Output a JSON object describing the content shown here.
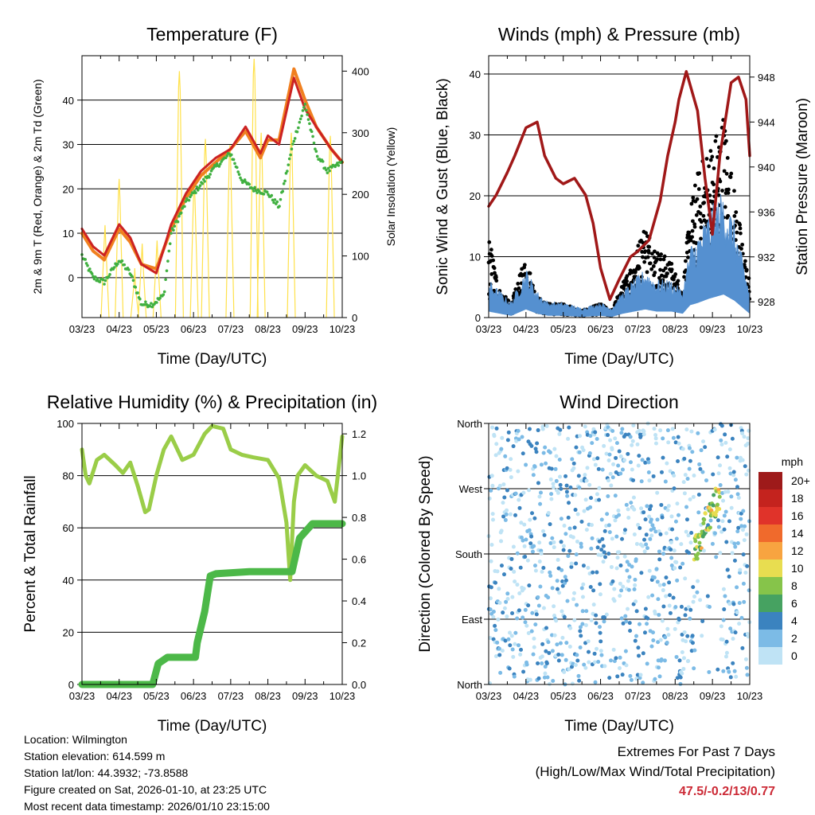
{
  "chart_data": [
    {
      "type": "line",
      "title": "Temperature (F)",
      "xlabel": "Time (Day/UTC)",
      "ylabel_left": "2m & 9m T (Red, Orange) & 2m Td (Green)",
      "ylabel_right": "Solar Insolation (Yellow)",
      "x_ticks": [
        "03/23",
        "04/23",
        "05/23",
        "06/23",
        "07/23",
        "08/23",
        "09/23",
        "10/23"
      ],
      "ylim_left": [
        -9,
        50
      ],
      "yticks_left": [
        0,
        10,
        20,
        30,
        40
      ],
      "ylim_right": [
        0,
        425
      ],
      "yticks_right": [
        0,
        100,
        200,
        300,
        400
      ],
      "series": [
        {
          "name": "2m T",
          "color": "#cc2222",
          "axis": "left",
          "x": [
            0,
            0.3,
            0.6,
            1,
            1.3,
            1.6,
            2,
            2.4,
            2.8,
            3.2,
            3.6,
            4,
            4.4,
            4.8,
            5,
            5.3,
            5.7,
            6,
            6.3,
            6.7,
            7
          ],
          "values": [
            11,
            7,
            5,
            12,
            9,
            3,
            1,
            12,
            19,
            24,
            27,
            29,
            34,
            28,
            32,
            30,
            45,
            38,
            34,
            29,
            26
          ]
        },
        {
          "name": "9m T",
          "color": "#f08020",
          "axis": "left",
          "x": [
            0,
            0.3,
            0.6,
            1,
            1.3,
            1.6,
            2,
            2.4,
            2.8,
            3.2,
            3.6,
            4,
            4.4,
            4.8,
            5,
            5.3,
            5.7,
            6,
            6.3,
            6.7,
            7
          ],
          "values": [
            10,
            6,
            4,
            11,
            8,
            3,
            2,
            11,
            18,
            23,
            26,
            29,
            33,
            27,
            31,
            31,
            47,
            40,
            34,
            29,
            26
          ]
        },
        {
          "name": "2m Td",
          "color": "#40b040",
          "axis": "left",
          "x": [
            0,
            0.3,
            0.6,
            1,
            1.3,
            1.6,
            1.9,
            2.2,
            2.4,
            2.8,
            3.2,
            3.6,
            4,
            4.3,
            4.6,
            5,
            5.3,
            5.7,
            6,
            6.3,
            6.6,
            7
          ],
          "values": [
            5,
            0,
            -1,
            4,
            1,
            -6,
            -6,
            -4,
            10,
            17,
            21,
            25,
            28,
            22,
            20,
            19,
            16,
            31,
            39,
            28,
            24,
            26
          ]
        },
        {
          "name": "Solar Insolation",
          "color": "#ffe14a",
          "axis": "right",
          "x": [
            0.62,
            1,
            1.42,
            1.62,
            2.02,
            2.62,
            3.02,
            3.32,
            3.98,
            4.63,
            4.82,
            5.63,
            6.68
          ],
          "values": [
            150,
            225,
            80,
            120,
            125,
            400,
            220,
            290,
            280,
            420,
            300,
            300,
            295
          ]
        }
      ]
    },
    {
      "type": "line",
      "title": "Winds (mph) & Pressure (mb)",
      "xlabel": "Time (Day/UTC)",
      "ylabel_left": "Sonic Wind & Gust (Blue, Black)",
      "ylabel_right": "Station Pressure (Maroon)",
      "x_ticks": [
        "03/23",
        "04/23",
        "05/23",
        "06/23",
        "07/23",
        "08/23",
        "09/23",
        "10/23"
      ],
      "ylim_left": [
        0,
        43
      ],
      "yticks_left": [
        0,
        10,
        20,
        30,
        40
      ],
      "ylim_right": [
        926.6,
        949.9
      ],
      "yticks_right": [
        928,
        932,
        936,
        940,
        944,
        948
      ],
      "series": [
        {
          "name": "Station Pressure",
          "color": "#a01818",
          "axis": "right",
          "x": [
            0,
            0.2,
            0.5,
            0.7,
            1,
            1.3,
            1.5,
            1.8,
            2,
            2.3,
            2.6,
            2.8,
            3,
            3.25,
            3.5,
            3.8,
            4,
            4.3,
            4.6,
            4.8,
            5,
            5.1,
            5.3,
            5.6,
            5.8,
            6,
            6.2,
            6.5,
            6.7,
            6.9,
            7
          ],
          "values": [
            936.5,
            937.5,
            939.5,
            941,
            943.5,
            944,
            941,
            939,
            938.5,
            939,
            937.5,
            935,
            931,
            928.2,
            930,
            932,
            932.5,
            933.5,
            937,
            941,
            944,
            946,
            948.5,
            945,
            939,
            934,
            941,
            947.5,
            948,
            946,
            941
          ]
        },
        {
          "name": "Sonic Wind",
          "color": "#5590d0",
          "axis": "left",
          "x": [
            0,
            0.3,
            0.6,
            1,
            1.3,
            1.6,
            2,
            2.5,
            3,
            3.3,
            3.6,
            3.9,
            4.2,
            4.5,
            4.9,
            5.2,
            5.4,
            5.6,
            5.9,
            6.1,
            6.3,
            6.6,
            7
          ],
          "values": [
            3,
            2,
            1,
            4,
            2,
            1,
            1,
            0.5,
            1,
            0.5,
            2,
            3,
            4,
            3,
            3,
            2,
            6,
            7,
            9,
            10,
            11,
            8,
            2
          ]
        },
        {
          "name": "Gust",
          "color": "#000000",
          "axis": "left",
          "x": [
            0,
            0.3,
            0.6,
            1,
            1.3,
            1.6,
            2,
            2.5,
            3,
            3.3,
            3.6,
            3.9,
            4.2,
            4.5,
            4.9,
            5.2,
            5.4,
            5.6,
            5.9,
            6.1,
            6.3,
            6.6,
            7
          ],
          "values": [
            12,
            4,
            2,
            9,
            3,
            2,
            2,
            1,
            2,
            1,
            5,
            9,
            14,
            10,
            8,
            4,
            16,
            21,
            25,
            27,
            30,
            18,
            5
          ]
        }
      ]
    },
    {
      "type": "line",
      "title": "Relative Humidity (%) & Precipitation (in)",
      "xlabel": "Time (Day/UTC)",
      "ylabel_left": "Percent & Total Rainfall",
      "x_ticks": [
        "03/23",
        "04/23",
        "05/23",
        "06/23",
        "07/23",
        "08/23",
        "09/23",
        "10/23"
      ],
      "ylim_left": [
        0,
        100
      ],
      "yticks_left": [
        0,
        20,
        40,
        60,
        80,
        100
      ],
      "ylim_right": [
        0,
        1.25
      ],
      "yticks_right": [
        0.0,
        0.2,
        0.4,
        0.6,
        0.8,
        1.0,
        1.2
      ],
      "series": [
        {
          "name": "Relative Humidity",
          "color": "#9acd48",
          "axis": "left",
          "x": [
            0,
            0.1,
            0.2,
            0.4,
            0.6,
            0.9,
            1.1,
            1.3,
            1.5,
            1.7,
            1.8,
            2,
            2.2,
            2.4,
            2.7,
            3.0,
            3.3,
            3.5,
            3.8,
            4.0,
            4.3,
            4.6,
            5.0,
            5.3,
            5.5,
            5.6,
            5.7,
            5.8,
            6.0,
            6.3,
            6.6,
            6.8,
            7
          ],
          "values": [
            90,
            80,
            77,
            86,
            88,
            84,
            81,
            85,
            76,
            66,
            67,
            80,
            90,
            95,
            86,
            88,
            96,
            99,
            98,
            90,
            88,
            87,
            86,
            79,
            62,
            40,
            70,
            80,
            84,
            80,
            78,
            70,
            95
          ]
        },
        {
          "name": "Total Precipitation",
          "color": "#4cb848",
          "axis": "right",
          "x": [
            0,
            1.9,
            2.05,
            2.3,
            3.05,
            3.1,
            3.3,
            3.45,
            3.6,
            4.5,
            5.65,
            5.75,
            5.85,
            6.2,
            7
          ],
          "values": [
            0,
            0,
            0.1,
            0.13,
            0.13,
            0.2,
            0.35,
            0.52,
            0.53,
            0.54,
            0.54,
            0.62,
            0.7,
            0.77,
            0.77
          ]
        }
      ]
    },
    {
      "type": "scatter",
      "title": "Wind Direction",
      "xlabel": "Time (Day/UTC)",
      "ylabel": "Direction (Colored By Speed)",
      "x_ticks": [
        "03/23",
        "04/23",
        "05/23",
        "06/23",
        "07/23",
        "08/23",
        "09/23",
        "10/23"
      ],
      "y_ticks": [
        "North",
        "East",
        "South",
        "West",
        "North"
      ],
      "ylim": [
        0,
        360
      ],
      "colorbar": {
        "title": "mph",
        "labels": [
          "20+",
          "18",
          "16",
          "14",
          "12",
          "10",
          "8",
          "6",
          "4",
          "2",
          "0"
        ],
        "colors": [
          "#9e1a1a",
          "#c4231e",
          "#e0332a",
          "#f06a2c",
          "#f8a440",
          "#e8dd50",
          "#86c44a",
          "#46a261",
          "#3b83bf",
          "#7cbbe6",
          "#bfe3f5"
        ]
      }
    }
  ],
  "info": {
    "location": "Location: Wilmington",
    "elevation": "Station elevation: 614.599 m",
    "latlon": "Station lat/lon: 44.3932; -73.8588",
    "created": "Figure created on Sat, 2026-01-10, at 23:25 UTC",
    "recent": "Most recent data timestamp: 2026/01/10 23:15:00"
  },
  "extremes": {
    "title": "Extremes For Past 7 Days",
    "subtitle": "(High/Low/Max Wind/Total Precipitation)",
    "values": "47.5/-0.2/13/0.77"
  }
}
